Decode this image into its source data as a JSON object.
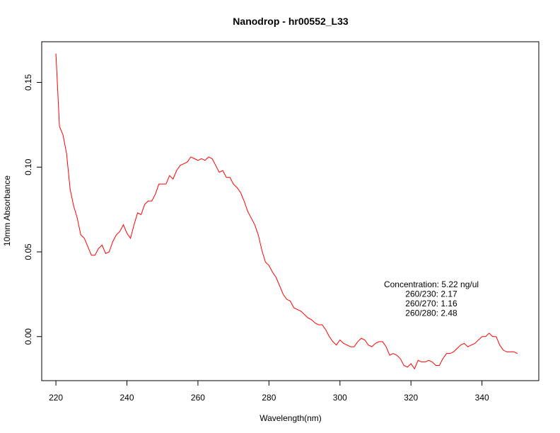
{
  "chart_data": {
    "type": "line",
    "title": "Nanodrop - hr00552_L33",
    "xlabel": "Wavelength(nm)",
    "ylabel": "10mm Absorbance",
    "xlim": [
      216,
      356
    ],
    "ylim": [
      -0.026,
      0.174
    ],
    "xticks": [
      "220",
      "240",
      "260",
      "280",
      "300",
      "320",
      "340"
    ],
    "yticks": [
      "0.00",
      "0.05",
      "0.10",
      "0.15"
    ],
    "grid": false,
    "series": [
      {
        "color": "#ff0000",
        "x": [
          220,
          221,
          222,
          223,
          224,
          225,
          226,
          227,
          228,
          229,
          230,
          231,
          232,
          233,
          234,
          235,
          236,
          237,
          238,
          239,
          240,
          241,
          242,
          243,
          244,
          245,
          246,
          247,
          248,
          249,
          250,
          251,
          252,
          253,
          254,
          255,
          256,
          257,
          258,
          259,
          260,
          261,
          262,
          263,
          264,
          265,
          266,
          267,
          268,
          269,
          270,
          271,
          272,
          273,
          274,
          275,
          276,
          277,
          278,
          279,
          280,
          281,
          282,
          283,
          284,
          285,
          286,
          287,
          288,
          289,
          290,
          291,
          292,
          293,
          294,
          295,
          296,
          297,
          298,
          299,
          300,
          301,
          302,
          303,
          304,
          305,
          306,
          307,
          308,
          309,
          310,
          311,
          312,
          313,
          314,
          315,
          316,
          317,
          318,
          319,
          320,
          321,
          322,
          323,
          324,
          325,
          326,
          327,
          328,
          329,
          330,
          331,
          332,
          333,
          334,
          335,
          336,
          337,
          338,
          339,
          340,
          341,
          342,
          343,
          344,
          345,
          346,
          347,
          348,
          349,
          350
        ],
        "y": [
          0.167,
          0.124,
          0.119,
          0.108,
          0.087,
          0.077,
          0.07,
          0.06,
          0.058,
          0.053,
          0.048,
          0.048,
          0.052,
          0.054,
          0.049,
          0.05,
          0.056,
          0.06,
          0.062,
          0.066,
          0.061,
          0.058,
          0.066,
          0.073,
          0.072,
          0.078,
          0.08,
          0.08,
          0.084,
          0.09,
          0.09,
          0.09,
          0.095,
          0.093,
          0.098,
          0.101,
          0.102,
          0.103,
          0.106,
          0.105,
          0.104,
          0.105,
          0.104,
          0.106,
          0.105,
          0.101,
          0.097,
          0.098,
          0.094,
          0.094,
          0.09,
          0.088,
          0.085,
          0.08,
          0.074,
          0.07,
          0.066,
          0.06,
          0.051,
          0.044,
          0.042,
          0.038,
          0.035,
          0.03,
          0.025,
          0.022,
          0.021,
          0.017,
          0.016,
          0.015,
          0.013,
          0.011,
          0.01,
          0.008,
          0.007,
          0.007,
          0.004,
          0.0,
          -0.003,
          -0.005,
          -0.002,
          -0.004,
          -0.005,
          -0.006,
          -0.006,
          -0.003,
          -0.001,
          -0.002,
          -0.005,
          -0.006,
          -0.004,
          -0.003,
          -0.003,
          -0.006,
          -0.011,
          -0.01,
          -0.011,
          -0.013,
          -0.017,
          -0.018,
          -0.016,
          -0.019,
          -0.014,
          -0.015,
          -0.015,
          -0.014,
          -0.015,
          -0.017,
          -0.017,
          -0.013,
          -0.01,
          -0.01,
          -0.009,
          -0.007,
          -0.005,
          -0.004,
          -0.006,
          -0.005,
          -0.004,
          -0.002,
          0.0,
          0.0,
          0.002,
          0.0,
          0.0,
          -0.005,
          -0.008,
          -0.009,
          -0.009,
          -0.009,
          -0.01
        ]
      }
    ],
    "annotations": [
      "Concentration: 5.22 ng/ul",
      "260/230: 2.17",
      "260/270: 1.16",
      "260/280: 2.48"
    ]
  }
}
